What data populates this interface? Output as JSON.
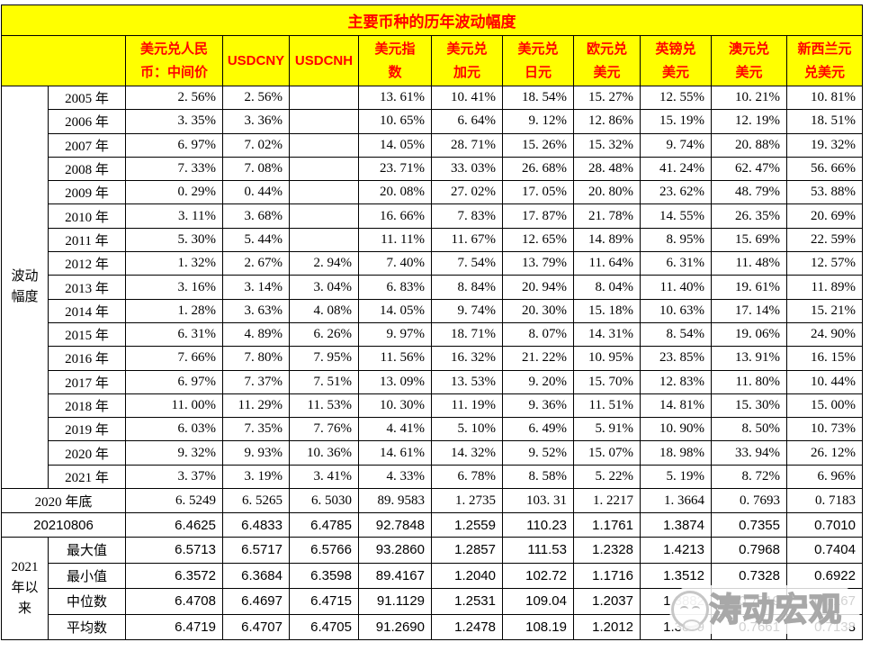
{
  "page": {
    "background": "#FFFFFF"
  },
  "colors": {
    "band_bg": "#FFFF00",
    "band_text": "#FF0000",
    "border": "#000000",
    "body_text": "#000000",
    "watermark_gray": "#A8A8A8"
  },
  "watermark": {
    "icon": "panda-face",
    "text": "涛动宏观"
  },
  "chart_data": {
    "type": "table",
    "title": "主要币种的历年波动幅度",
    "columns": [
      "美元兑人民\n币：中间价",
      "USDCNY",
      "USDCNH",
      "美元指\n数",
      "美元兑\n加元",
      "美元兑\n日元",
      "欧元兑\n美元",
      "英镑兑\n美元",
      "澳元兑\n美元",
      "新西兰元\n兑美元"
    ],
    "row_group_label": "波动\n幅度",
    "yearly_rows": [
      {
        "year": "2005 年",
        "values": [
          "2. 56%",
          "2. 56%",
          "",
          "13. 61%",
          "10. 41%",
          "18. 54%",
          "15. 27%",
          "12. 55%",
          "10. 21%",
          "10. 81%"
        ]
      },
      {
        "year": "2006 年",
        "values": [
          "3. 35%",
          "3. 36%",
          "",
          "10. 65%",
          "6. 64%",
          "9. 12%",
          "12. 86%",
          "15. 19%",
          "12. 19%",
          "18. 51%"
        ]
      },
      {
        "year": "2007 年",
        "values": [
          "6. 97%",
          "7. 02%",
          "",
          "14. 05%",
          "28. 71%",
          "15. 26%",
          "15. 32%",
          "9. 74%",
          "20. 88%",
          "19. 32%"
        ]
      },
      {
        "year": "2008 年",
        "values": [
          "7. 33%",
          "7. 08%",
          "",
          "23. 71%",
          "33. 03%",
          "26. 68%",
          "28. 48%",
          "41. 24%",
          "62. 47%",
          "56. 66%"
        ]
      },
      {
        "year": "2009 年",
        "values": [
          "0. 29%",
          "0. 44%",
          "",
          "20. 08%",
          "27. 02%",
          "17. 05%",
          "20. 80%",
          "23. 62%",
          "48. 79%",
          "53. 88%"
        ]
      },
      {
        "year": "2010 年",
        "values": [
          "3. 11%",
          "3. 68%",
          "",
          "16. 66%",
          "7. 83%",
          "17. 87%",
          "21. 78%",
          "14. 55%",
          "26. 35%",
          "20. 69%"
        ]
      },
      {
        "year": "2011 年",
        "values": [
          "5. 30%",
          "5. 44%",
          "",
          "11. 11%",
          "11. 67%",
          "12. 65%",
          "14. 89%",
          "8. 95%",
          "15. 69%",
          "22. 59%"
        ]
      },
      {
        "year": "2012 年",
        "values": [
          "1. 32%",
          "2. 67%",
          "2. 94%",
          "7. 40%",
          "7. 54%",
          "13. 79%",
          "11. 64%",
          "6. 31%",
          "11. 48%",
          "12. 57%"
        ]
      },
      {
        "year": "2013 年",
        "values": [
          "3. 16%",
          "3. 14%",
          "3. 04%",
          "6. 83%",
          "8. 84%",
          "20. 94%",
          "8. 04%",
          "11. 40%",
          "19. 61%",
          "11. 89%"
        ]
      },
      {
        "year": "2014 年",
        "values": [
          "1. 28%",
          "3. 63%",
          "4. 08%",
          "14. 05%",
          "9. 74%",
          "20. 30%",
          "15. 18%",
          "10. 63%",
          "17. 14%",
          "15. 21%"
        ]
      },
      {
        "year": "2015 年",
        "values": [
          "6. 31%",
          "4. 89%",
          "6. 26%",
          "9. 97%",
          "18. 71%",
          "8. 07%",
          "14. 31%",
          "8. 54%",
          "19. 06%",
          "24. 90%"
        ]
      },
      {
        "year": "2016 年",
        "values": [
          "7. 66%",
          "7. 80%",
          "7. 95%",
          "11. 56%",
          "16. 32%",
          "21. 22%",
          "10. 95%",
          "23. 85%",
          "13. 91%",
          "16. 15%"
        ]
      },
      {
        "year": "2017 年",
        "values": [
          "6. 97%",
          "7. 37%",
          "7. 51%",
          "13. 09%",
          "13. 53%",
          "9. 20%",
          "15. 70%",
          "12. 83%",
          "11. 80%",
          "10. 44%"
        ]
      },
      {
        "year": "2018 年",
        "values": [
          "11. 00%",
          "11. 29%",
          "11. 53%",
          "10. 30%",
          "11. 19%",
          "9. 36%",
          "11. 51%",
          "14. 81%",
          "15. 30%",
          "15. 00%"
        ]
      },
      {
        "year": "2019 年",
        "values": [
          "6. 03%",
          "7. 35%",
          "7. 76%",
          "4. 41%",
          "5. 10%",
          "6. 49%",
          "5. 91%",
          "10. 90%",
          "8. 50%",
          "10. 73%"
        ]
      },
      {
        "year": "2020 年",
        "values": [
          "9. 32%",
          "9. 93%",
          "10. 36%",
          "14. 61%",
          "14. 32%",
          "9. 52%",
          "15. 07%",
          "18. 98%",
          "33. 94%",
          "26. 12%"
        ]
      },
      {
        "year": "2021 年",
        "values": [
          "3. 37%",
          "3. 19%",
          "3. 41%",
          "4. 33%",
          "6. 78%",
          "8. 58%",
          "5. 22%",
          "5. 19%",
          "8. 72%",
          "6. 96%"
        ]
      }
    ],
    "snapshot_rows": [
      {
        "label": "2020 年底",
        "style": "serif",
        "values": [
          "6. 5249",
          "6. 5265",
          "6. 5030",
          "89. 9583",
          "1. 2735",
          "103. 31",
          "1. 2217",
          "1. 3664",
          "0. 7693",
          "0. 7183"
        ]
      },
      {
        "label": "20210806",
        "style": "sans",
        "values": [
          "6.4625",
          "6.4833",
          "6.4785",
          "92.7848",
          "1.2559",
          "110.23",
          "1.1761",
          "1.3874",
          "0.7355",
          "0.7010"
        ]
      }
    ],
    "ytd_group_label": "2021\n年以\n来",
    "ytd_rows": [
      {
        "label": "最大值",
        "values": [
          "6.5713",
          "6.5717",
          "6.5766",
          "93.2860",
          "1.2857",
          "111.53",
          "1.2328",
          "1.4213",
          "0.7968",
          "0.7404"
        ]
      },
      {
        "label": "最小值",
        "values": [
          "6.3572",
          "6.3684",
          "6.3598",
          "89.4167",
          "1.2040",
          "102.72",
          "1.1716",
          "1.3512",
          "0.7328",
          "0.6922"
        ]
      },
      {
        "label": "中位数",
        "values": [
          "6.4708",
          "6.4697",
          "6.4715",
          "91.1129",
          "1.2531",
          "109.04",
          "1.2037",
          "1.3882",
          "0.7719",
          "0.7167"
        ]
      },
      {
        "label": "平均数",
        "values": [
          "6.4719",
          "6.4707",
          "6.4705",
          "91.2690",
          "1.2478",
          "108.19",
          "1.2012",
          "1.3879",
          "0.7661",
          "0.7138"
        ]
      }
    ]
  }
}
